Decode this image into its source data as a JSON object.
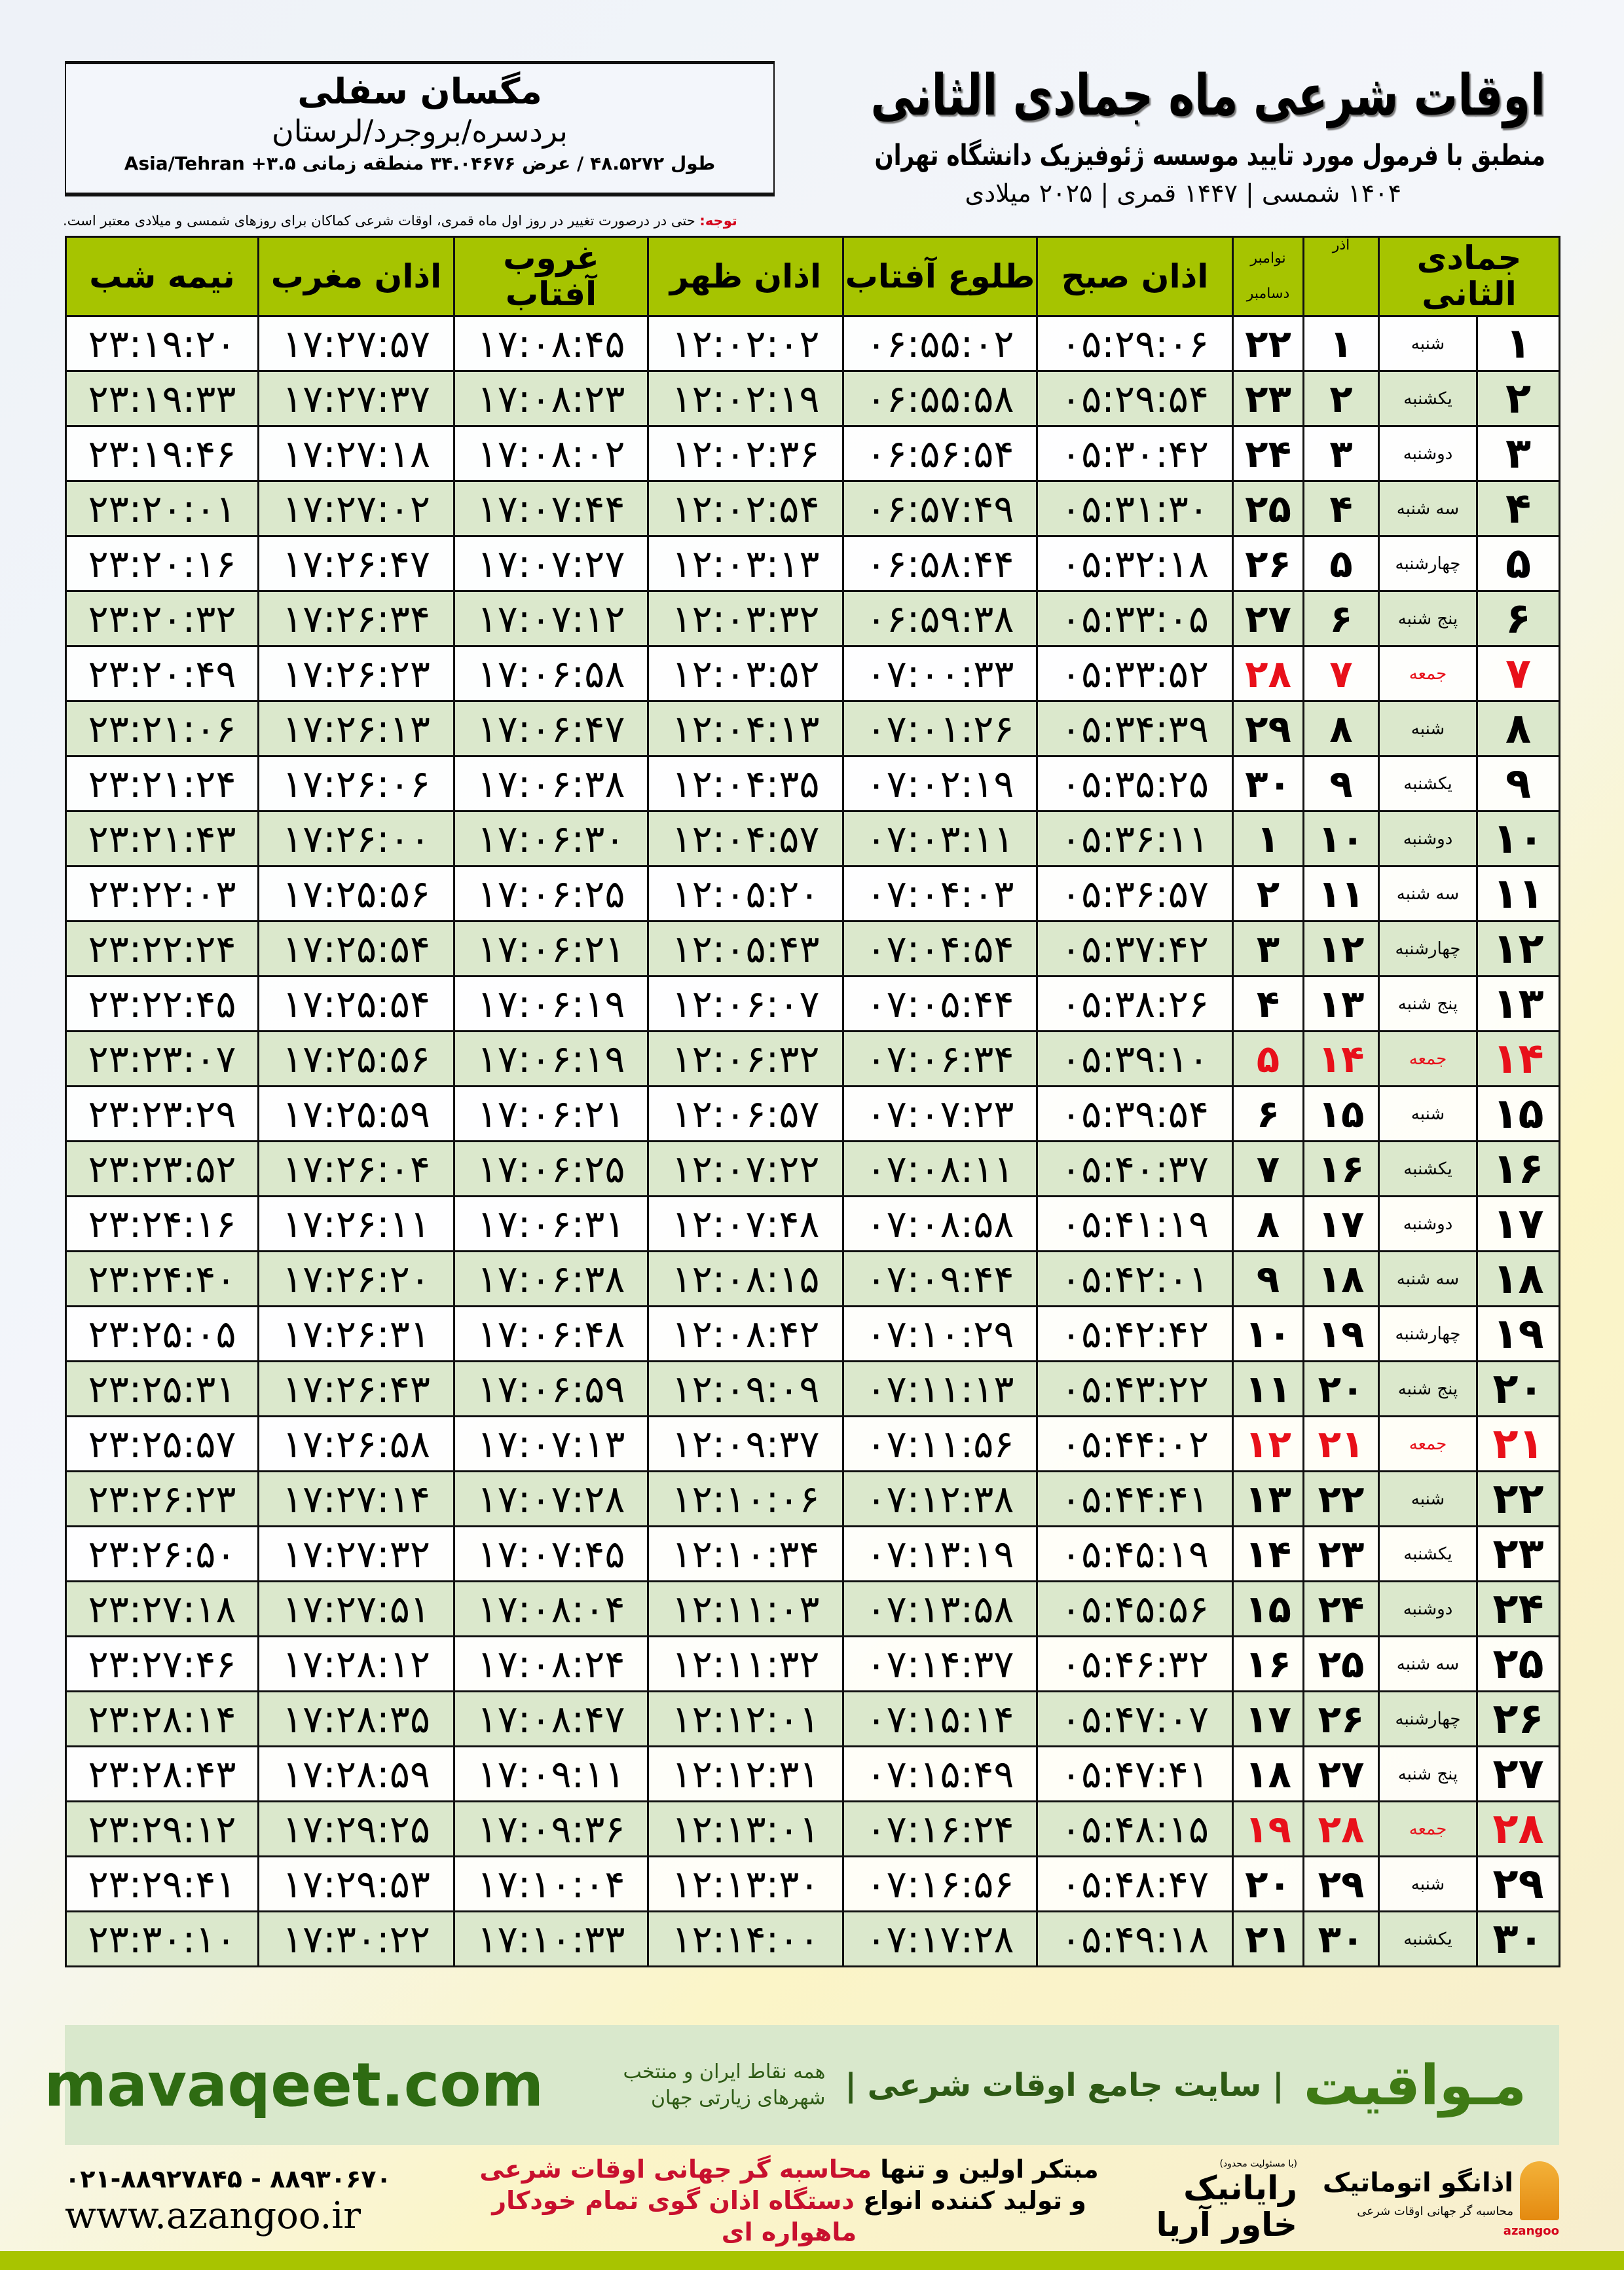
{
  "header": {
    "title": "اوقات شرعی ماه جمادی الثانی",
    "subtitle": "منطبق با فرمول مورد تایید موسسه ژئوفیزیک دانشگاه تهران",
    "dates": "۱۴۰۴ شمسی | ۱۴۴۷ قمری | ۲۰۲۵ میلادی"
  },
  "location": {
    "name": "مگسان سفلی",
    "path": "بردسره/بروجرد/لرستان",
    "coords": "طول ۴۸.۵۲۷۲ / عرض ۳۴.۰۴۶۷۶ منطقه زمانی ۳.۵+ Asia/Tehran"
  },
  "note": {
    "label": "توجه:",
    "text": " حتی در درصورت تغییر در روز اول ماه قمری، اوقات شرعی کماکان برای روزهای شمسی و میلادی معتبر است."
  },
  "table": {
    "headers": {
      "jumada": "جمادی الثانی",
      "azar": "آذر",
      "gregorian_top": "نوامبر",
      "gregorian_bottom": "دسامبر",
      "fajr": "اذان صبح",
      "sunrise": "طلوع آفتاب",
      "dhuhr": "اذان ظهر",
      "sunset": "غروب آفتاب",
      "maghrib": "اذان مغرب",
      "midnight": "نیمه شب"
    },
    "friday_color": "#e8101a",
    "header_color": "#a6c400",
    "rows": [
      {
        "day": "۱",
        "weekday": "شنبه",
        "azar": "۱",
        "greg": "۲۲",
        "fajr": "۰۵:۲۹:۰۶",
        "sunrise": "۰۶:۵۵:۰۲",
        "dhuhr": "۱۲:۰۲:۰۲",
        "sunset": "۱۷:۰۸:۴۵",
        "maghrib": "۱۷:۲۷:۵۷",
        "midnight": "۲۳:۱۹:۲۰",
        "friday": false
      },
      {
        "day": "۲",
        "weekday": "یکشنبه",
        "azar": "۲",
        "greg": "۲۳",
        "fajr": "۰۵:۲۹:۵۴",
        "sunrise": "۰۶:۵۵:۵۸",
        "dhuhr": "۱۲:۰۲:۱۹",
        "sunset": "۱۷:۰۸:۲۳",
        "maghrib": "۱۷:۲۷:۳۷",
        "midnight": "۲۳:۱۹:۳۳",
        "friday": false
      },
      {
        "day": "۳",
        "weekday": "دوشنبه",
        "azar": "۳",
        "greg": "۲۴",
        "fajr": "۰۵:۳۰:۴۲",
        "sunrise": "۰۶:۵۶:۵۴",
        "dhuhr": "۱۲:۰۲:۳۶",
        "sunset": "۱۷:۰۸:۰۲",
        "maghrib": "۱۷:۲۷:۱۸",
        "midnight": "۲۳:۱۹:۴۶",
        "friday": false
      },
      {
        "day": "۴",
        "weekday": "سه شنبه",
        "azar": "۴",
        "greg": "۲۵",
        "fajr": "۰۵:۳۱:۳۰",
        "sunrise": "۰۶:۵۷:۴۹",
        "dhuhr": "۱۲:۰۲:۵۴",
        "sunset": "۱۷:۰۷:۴۴",
        "maghrib": "۱۷:۲۷:۰۲",
        "midnight": "۲۳:۲۰:۰۱",
        "friday": false
      },
      {
        "day": "۵",
        "weekday": "چهارشنبه",
        "azar": "۵",
        "greg": "۲۶",
        "fajr": "۰۵:۳۲:۱۸",
        "sunrise": "۰۶:۵۸:۴۴",
        "dhuhr": "۱۲:۰۳:۱۳",
        "sunset": "۱۷:۰۷:۲۷",
        "maghrib": "۱۷:۲۶:۴۷",
        "midnight": "۲۳:۲۰:۱۶",
        "friday": false
      },
      {
        "day": "۶",
        "weekday": "پنج شنبه",
        "azar": "۶",
        "greg": "۲۷",
        "fajr": "۰۵:۳۳:۰۵",
        "sunrise": "۰۶:۵۹:۳۸",
        "dhuhr": "۱۲:۰۳:۳۲",
        "sunset": "۱۷:۰۷:۱۲",
        "maghrib": "۱۷:۲۶:۳۴",
        "midnight": "۲۳:۲۰:۳۲",
        "friday": false
      },
      {
        "day": "۷",
        "weekday": "جمعه",
        "azar": "۷",
        "greg": "۲۸",
        "fajr": "۰۵:۳۳:۵۲",
        "sunrise": "۰۷:۰۰:۳۳",
        "dhuhr": "۱۲:۰۳:۵۲",
        "sunset": "۱۷:۰۶:۵۸",
        "maghrib": "۱۷:۲۶:۲۳",
        "midnight": "۲۳:۲۰:۴۹",
        "friday": true
      },
      {
        "day": "۸",
        "weekday": "شنبه",
        "azar": "۸",
        "greg": "۲۹",
        "fajr": "۰۵:۳۴:۳۹",
        "sunrise": "۰۷:۰۱:۲۶",
        "dhuhr": "۱۲:۰۴:۱۳",
        "sunset": "۱۷:۰۶:۴۷",
        "maghrib": "۱۷:۲۶:۱۳",
        "midnight": "۲۳:۲۱:۰۶",
        "friday": false
      },
      {
        "day": "۹",
        "weekday": "یکشنبه",
        "azar": "۹",
        "greg": "۳۰",
        "fajr": "۰۵:۳۵:۲۵",
        "sunrise": "۰۷:۰۲:۱۹",
        "dhuhr": "۱۲:۰۴:۳۵",
        "sunset": "۱۷:۰۶:۳۸",
        "maghrib": "۱۷:۲۶:۰۶",
        "midnight": "۲۳:۲۱:۲۴",
        "friday": false
      },
      {
        "day": "۱۰",
        "weekday": "دوشنبه",
        "azar": "۱۰",
        "greg": "۱",
        "fajr": "۰۵:۳۶:۱۱",
        "sunrise": "۰۷:۰۳:۱۱",
        "dhuhr": "۱۲:۰۴:۵۷",
        "sunset": "۱۷:۰۶:۳۰",
        "maghrib": "۱۷:۲۶:۰۰",
        "midnight": "۲۳:۲۱:۴۳",
        "friday": false
      },
      {
        "day": "۱۱",
        "weekday": "سه شنبه",
        "azar": "۱۱",
        "greg": "۲",
        "fajr": "۰۵:۳۶:۵۷",
        "sunrise": "۰۷:۰۴:۰۳",
        "dhuhr": "۱۲:۰۵:۲۰",
        "sunset": "۱۷:۰۶:۲۵",
        "maghrib": "۱۷:۲۵:۵۶",
        "midnight": "۲۳:۲۲:۰۳",
        "friday": false
      },
      {
        "day": "۱۲",
        "weekday": "چهارشنبه",
        "azar": "۱۲",
        "greg": "۳",
        "fajr": "۰۵:۳۷:۴۲",
        "sunrise": "۰۷:۰۴:۵۴",
        "dhuhr": "۱۲:۰۵:۴۳",
        "sunset": "۱۷:۰۶:۲۱",
        "maghrib": "۱۷:۲۵:۵۴",
        "midnight": "۲۳:۲۲:۲۴",
        "friday": false
      },
      {
        "day": "۱۳",
        "weekday": "پنج شنبه",
        "azar": "۱۳",
        "greg": "۴",
        "fajr": "۰۵:۳۸:۲۶",
        "sunrise": "۰۷:۰۵:۴۴",
        "dhuhr": "۱۲:۰۶:۰۷",
        "sunset": "۱۷:۰۶:۱۹",
        "maghrib": "۱۷:۲۵:۵۴",
        "midnight": "۲۳:۲۲:۴۵",
        "friday": false
      },
      {
        "day": "۱۴",
        "weekday": "جمعه",
        "azar": "۱۴",
        "greg": "۵",
        "fajr": "۰۵:۳۹:۱۰",
        "sunrise": "۰۷:۰۶:۳۴",
        "dhuhr": "۱۲:۰۶:۳۲",
        "sunset": "۱۷:۰۶:۱۹",
        "maghrib": "۱۷:۲۵:۵۶",
        "midnight": "۲۳:۲۳:۰۷",
        "friday": true
      },
      {
        "day": "۱۵",
        "weekday": "شنبه",
        "azar": "۱۵",
        "greg": "۶",
        "fajr": "۰۵:۳۹:۵۴",
        "sunrise": "۰۷:۰۷:۲۳",
        "dhuhr": "۱۲:۰۶:۵۷",
        "sunset": "۱۷:۰۶:۲۱",
        "maghrib": "۱۷:۲۵:۵۹",
        "midnight": "۲۳:۲۳:۲۹",
        "friday": false
      },
      {
        "day": "۱۶",
        "weekday": "یکشنبه",
        "azar": "۱۶",
        "greg": "۷",
        "fajr": "۰۵:۴۰:۳۷",
        "sunrise": "۰۷:۰۸:۱۱",
        "dhuhr": "۱۲:۰۷:۲۲",
        "sunset": "۱۷:۰۶:۲۵",
        "maghrib": "۱۷:۲۶:۰۴",
        "midnight": "۲۳:۲۳:۵۲",
        "friday": false
      },
      {
        "day": "۱۷",
        "weekday": "دوشنبه",
        "azar": "۱۷",
        "greg": "۸",
        "fajr": "۰۵:۴۱:۱۹",
        "sunrise": "۰۷:۰۸:۵۸",
        "dhuhr": "۱۲:۰۷:۴۸",
        "sunset": "۱۷:۰۶:۳۱",
        "maghrib": "۱۷:۲۶:۱۱",
        "midnight": "۲۳:۲۴:۱۶",
        "friday": false
      },
      {
        "day": "۱۸",
        "weekday": "سه شنبه",
        "azar": "۱۸",
        "greg": "۹",
        "fajr": "۰۵:۴۲:۰۱",
        "sunrise": "۰۷:۰۹:۴۴",
        "dhuhr": "۱۲:۰۸:۱۵",
        "sunset": "۱۷:۰۶:۳۸",
        "maghrib": "۱۷:۲۶:۲۰",
        "midnight": "۲۳:۲۴:۴۰",
        "friday": false
      },
      {
        "day": "۱۹",
        "weekday": "چهارشنبه",
        "azar": "۱۹",
        "greg": "۱۰",
        "fajr": "۰۵:۴۲:۴۲",
        "sunrise": "۰۷:۱۰:۲۹",
        "dhuhr": "۱۲:۰۸:۴۲",
        "sunset": "۱۷:۰۶:۴۸",
        "maghrib": "۱۷:۲۶:۳۱",
        "midnight": "۲۳:۲۵:۰۵",
        "friday": false
      },
      {
        "day": "۲۰",
        "weekday": "پنج شنبه",
        "azar": "۲۰",
        "greg": "۱۱",
        "fajr": "۰۵:۴۳:۲۲",
        "sunrise": "۰۷:۱۱:۱۳",
        "dhuhr": "۱۲:۰۹:۰۹",
        "sunset": "۱۷:۰۶:۵۹",
        "maghrib": "۱۷:۲۶:۴۳",
        "midnight": "۲۳:۲۵:۳۱",
        "friday": false
      },
      {
        "day": "۲۱",
        "weekday": "جمعه",
        "azar": "۲۱",
        "greg": "۱۲",
        "fajr": "۰۵:۴۴:۰۲",
        "sunrise": "۰۷:۱۱:۵۶",
        "dhuhr": "۱۲:۰۹:۳۷",
        "sunset": "۱۷:۰۷:۱۳",
        "maghrib": "۱۷:۲۶:۵۸",
        "midnight": "۲۳:۲۵:۵۷",
        "friday": true
      },
      {
        "day": "۲۲",
        "weekday": "شنبه",
        "azar": "۲۲",
        "greg": "۱۳",
        "fajr": "۰۵:۴۴:۴۱",
        "sunrise": "۰۷:۱۲:۳۸",
        "dhuhr": "۱۲:۱۰:۰۶",
        "sunset": "۱۷:۰۷:۲۸",
        "maghrib": "۱۷:۲۷:۱۴",
        "midnight": "۲۳:۲۶:۲۳",
        "friday": false
      },
      {
        "day": "۲۳",
        "weekday": "یکشنبه",
        "azar": "۲۳",
        "greg": "۱۴",
        "fajr": "۰۵:۴۵:۱۹",
        "sunrise": "۰۷:۱۳:۱۹",
        "dhuhr": "۱۲:۱۰:۳۴",
        "sunset": "۱۷:۰۷:۴۵",
        "maghrib": "۱۷:۲۷:۳۲",
        "midnight": "۲۳:۲۶:۵۰",
        "friday": false
      },
      {
        "day": "۲۴",
        "weekday": "دوشنبه",
        "azar": "۲۴",
        "greg": "۱۵",
        "fajr": "۰۵:۴۵:۵۶",
        "sunrise": "۰۷:۱۳:۵۸",
        "dhuhr": "۱۲:۱۱:۰۳",
        "sunset": "۱۷:۰۸:۰۴",
        "maghrib": "۱۷:۲۷:۵۱",
        "midnight": "۲۳:۲۷:۱۸",
        "friday": false
      },
      {
        "day": "۲۵",
        "weekday": "سه شنبه",
        "azar": "۲۵",
        "greg": "۱۶",
        "fajr": "۰۵:۴۶:۳۲",
        "sunrise": "۰۷:۱۴:۳۷",
        "dhuhr": "۱۲:۱۱:۳۲",
        "sunset": "۱۷:۰۸:۲۴",
        "maghrib": "۱۷:۲۸:۱۲",
        "midnight": "۲۳:۲۷:۴۶",
        "friday": false
      },
      {
        "day": "۲۶",
        "weekday": "چهارشنبه",
        "azar": "۲۶",
        "greg": "۱۷",
        "fajr": "۰۵:۴۷:۰۷",
        "sunrise": "۰۷:۱۵:۱۴",
        "dhuhr": "۱۲:۱۲:۰۱",
        "sunset": "۱۷:۰۸:۴۷",
        "maghrib": "۱۷:۲۸:۳۵",
        "midnight": "۲۳:۲۸:۱۴",
        "friday": false
      },
      {
        "day": "۲۷",
        "weekday": "پنج شنبه",
        "azar": "۲۷",
        "greg": "۱۸",
        "fajr": "۰۵:۴۷:۴۱",
        "sunrise": "۰۷:۱۵:۴۹",
        "dhuhr": "۱۲:۱۲:۳۱",
        "sunset": "۱۷:۰۹:۱۱",
        "maghrib": "۱۷:۲۸:۵۹",
        "midnight": "۲۳:۲۸:۴۳",
        "friday": false
      },
      {
        "day": "۲۸",
        "weekday": "جمعه",
        "azar": "۲۸",
        "greg": "۱۹",
        "fajr": "۰۵:۴۸:۱۵",
        "sunrise": "۰۷:۱۶:۲۴",
        "dhuhr": "۱۲:۱۳:۰۱",
        "sunset": "۱۷:۰۹:۳۶",
        "maghrib": "۱۷:۲۹:۲۵",
        "midnight": "۲۳:۲۹:۱۲",
        "friday": true
      },
      {
        "day": "۲۹",
        "weekday": "شنبه",
        "azar": "۲۹",
        "greg": "۲۰",
        "fajr": "۰۵:۴۸:۴۷",
        "sunrise": "۰۷:۱۶:۵۶",
        "dhuhr": "۱۲:۱۳:۳۰",
        "sunset": "۱۷:۱۰:۰۴",
        "maghrib": "۱۷:۲۹:۵۳",
        "midnight": "۲۳:۲۹:۴۱",
        "friday": false
      },
      {
        "day": "۳۰",
        "weekday": "یکشنبه",
        "azar": "۳۰",
        "greg": "۲۱",
        "fajr": "۰۵:۴۹:۱۸",
        "sunrise": "۰۷:۱۷:۲۸",
        "dhuhr": "۱۲:۱۴:۰۰",
        "sunset": "۱۷:۱۰:۳۳",
        "maghrib": "۱۷:۳۰:۲۲",
        "midnight": "۲۳:۳۰:۱۰",
        "friday": false
      }
    ]
  },
  "footer": {
    "brand": "مـواقیت",
    "slogan": "| سایت جامع اوقات شرعی |",
    "slogan_sub": "همه نقاط ایران و منتخب شهرهای زیارتی جهان",
    "site": "mavaqeet.com",
    "phone": "۰۲۱-۸۸۹۲۷۸۴۵ - ۸۸۹۳۰۶۷۰",
    "www": "www.azangoo.ir",
    "promo_line1_a": "مبتکر اولین و تنها ",
    "promo_line1_b": "محاسبه گر جهانی اوقات شرعی",
    "promo_line2_a": "و تولید کننده انواع ",
    "promo_line2_b": "دستگاه اذان گوی تمام خودکار ماهواره ای",
    "rayanik_tag": "(با مسئولیت محدود)",
    "rayanik": "رایانیک خاور آریا",
    "azangoo_name": "اذانگو اتوماتیک",
    "azangoo_tag": "محاسبه گر جهانی اوقات شرعی",
    "azangoo_latin": "azangoo",
    "accent_color": "#a8c400"
  }
}
